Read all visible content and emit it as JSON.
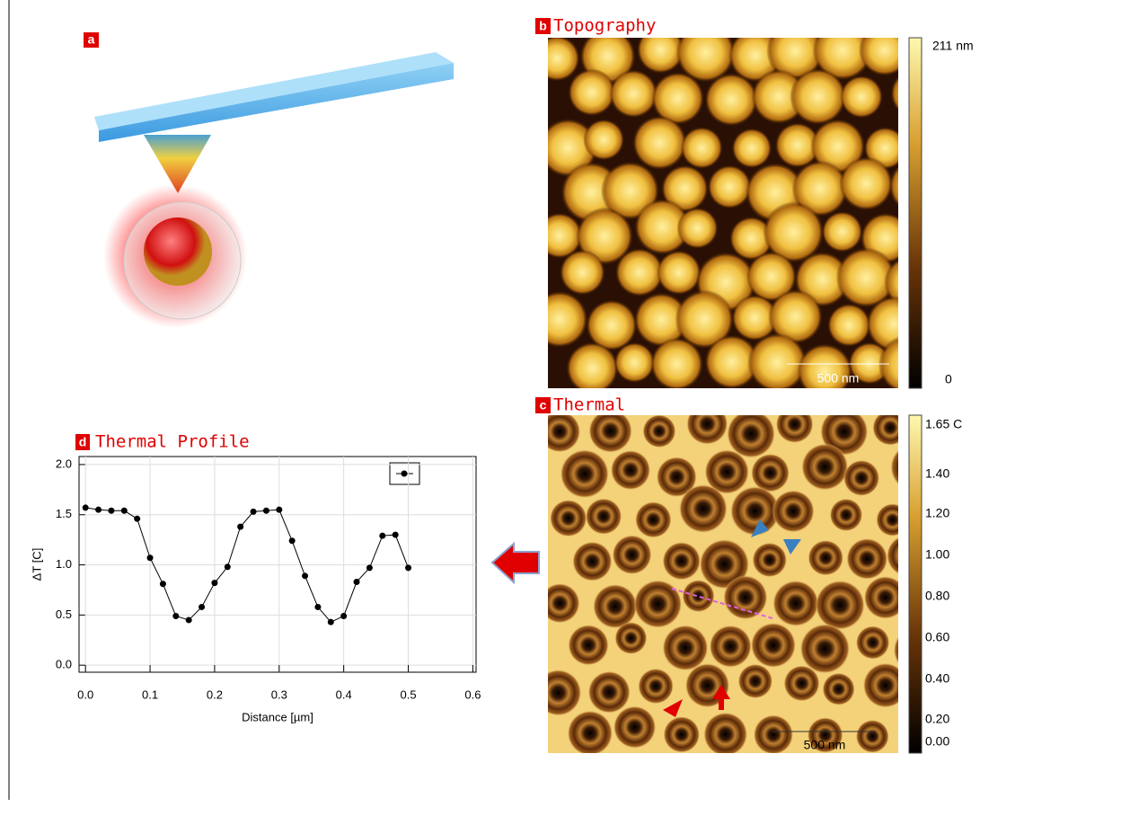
{
  "panel_a": {
    "label": "a"
  },
  "panel_b": {
    "label": "b",
    "title": "Topography",
    "colorbar_labels": [
      "211 nm",
      "0"
    ],
    "scale_bar": "500 nm"
  },
  "panel_c": {
    "label": "c",
    "title": "Thermal",
    "colorbar_labels": [
      "1.65 C",
      "1.40",
      "1.20",
      "1.00",
      "0.80",
      "0.60",
      "0.40",
      "0.20",
      "0.00"
    ],
    "scale_bar": "500 nm"
  },
  "panel_d": {
    "label": "d"
  },
  "chart_data": {
    "type": "line",
    "title": "Thermal Profile",
    "x_label": "Distance [µm]",
    "y_label": "ΔT [C]",
    "x": [
      0,
      0.02,
      0.04,
      0.06,
      0.08,
      0.1,
      0.12,
      0.14,
      0.16,
      0.18,
      0.2,
      0.22,
      0.24,
      0.26,
      0.28,
      0.3,
      0.32,
      0.34,
      0.36,
      0.38,
      0.4,
      0.42,
      0.44,
      0.46,
      0.48,
      0.5
    ],
    "series": [
      {
        "color": "#000000",
        "values": [
          1.57,
          1.55,
          1.54,
          1.54,
          1.46,
          1.07,
          0.81,
          0.49,
          0.45,
          0.58,
          0.82,
          0.98,
          1.38,
          1.53,
          1.54,
          1.55,
          1.24,
          0.89,
          0.58,
          0.43,
          0.49,
          0.83,
          0.97,
          1.29,
          1.3,
          0.97
        ]
      }
    ],
    "xlim": [
      -0.01,
      0.605
    ],
    "ylim": [
      -0.07,
      2.08
    ],
    "xticks": [
      {
        "value": 0,
        "label": "0.0"
      },
      0.1,
      0.2,
      0.3,
      0.4,
      0.5,
      0.6
    ],
    "yticks": [
      {
        "value": 0,
        "label": "0.0"
      },
      0.5,
      {
        "value": 1,
        "label": "1.0"
      },
      1.5,
      {
        "value": 2,
        "label": "2.0"
      }
    ],
    "grid": true,
    "legend": "upper right"
  }
}
